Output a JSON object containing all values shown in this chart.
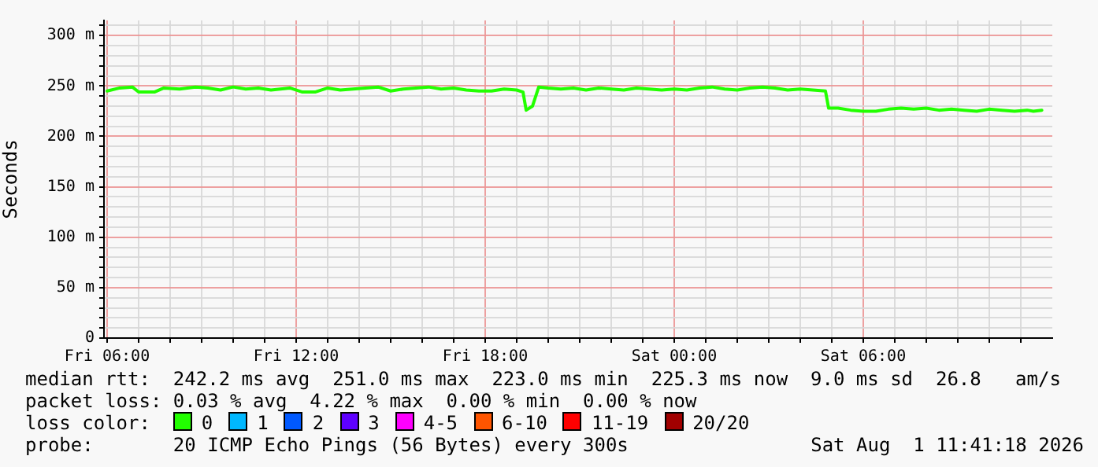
{
  "chart_data": {
    "type": "line",
    "ylabel": "Seconds",
    "grid": true,
    "marker": "none",
    "line_style": "solid",
    "legend": "bottom",
    "legend_title": "loss color:",
    "xlim": [
      "2026-07-31T05:54",
      "2026-08-01T12:00"
    ],
    "xticks": [
      {
        "value": "2026-07-31T06:00",
        "label": "Fri 06:00"
      },
      {
        "value": "2026-07-31T07:00",
        "label": null
      },
      {
        "value": "2026-07-31T08:00",
        "label": null
      },
      {
        "value": "2026-07-31T09:00",
        "label": null
      },
      {
        "value": "2026-07-31T10:00",
        "label": null
      },
      {
        "value": "2026-07-31T11:00",
        "label": null
      },
      {
        "value": "2026-07-31T12:00",
        "label": "Fri 12:00"
      },
      {
        "value": "2026-07-31T13:00",
        "label": null
      },
      {
        "value": "2026-07-31T14:00",
        "label": null
      },
      {
        "value": "2026-07-31T15:00",
        "label": null
      },
      {
        "value": "2026-07-31T16:00",
        "label": null
      },
      {
        "value": "2026-07-31T17:00",
        "label": null
      },
      {
        "value": "2026-07-31T18:00",
        "label": "Fri 18:00"
      },
      {
        "value": "2026-07-31T19:00",
        "label": null
      },
      {
        "value": "2026-07-31T20:00",
        "label": null
      },
      {
        "value": "2026-07-31T21:00",
        "label": null
      },
      {
        "value": "2026-07-31T22:00",
        "label": null
      },
      {
        "value": "2026-07-31T23:00",
        "label": null
      },
      {
        "value": "2026-08-01T00:00",
        "label": "Sat 00:00"
      },
      {
        "value": "2026-08-01T01:00",
        "label": null
      },
      {
        "value": "2026-08-01T02:00",
        "label": null
      },
      {
        "value": "2026-08-01T03:00",
        "label": null
      },
      {
        "value": "2026-08-01T04:00",
        "label": null
      },
      {
        "value": "2026-08-01T05:00",
        "label": null
      },
      {
        "value": "2026-08-01T06:00",
        "label": "Sat 06:00"
      },
      {
        "value": "2026-08-01T07:00",
        "label": null
      },
      {
        "value": "2026-08-01T08:00",
        "label": null
      },
      {
        "value": "2026-08-01T09:00",
        "label": null
      },
      {
        "value": "2026-08-01T10:00",
        "label": null
      },
      {
        "value": "2026-08-01T11:00",
        "label": null
      }
    ],
    "ylim": [
      0,
      315
    ],
    "yticks": [
      0,
      {
        "value": 10,
        "label": null
      },
      {
        "value": 20,
        "label": null
      },
      {
        "value": 30,
        "label": null
      },
      {
        "value": 40,
        "label": null
      },
      {
        "value": 50,
        "label": "50 m"
      },
      {
        "value": 60,
        "label": null
      },
      {
        "value": 70,
        "label": null
      },
      {
        "value": 80,
        "label": null
      },
      {
        "value": 90,
        "label": null
      },
      {
        "value": 100,
        "label": "100 m"
      },
      {
        "value": 110,
        "label": null
      },
      {
        "value": 120,
        "label": null
      },
      {
        "value": 130,
        "label": null
      },
      {
        "value": 140,
        "label": null
      },
      {
        "value": 150,
        "label": "150 m"
      },
      {
        "value": 160,
        "label": null
      },
      {
        "value": 170,
        "label": null
      },
      {
        "value": 180,
        "label": null
      },
      {
        "value": 190,
        "label": null
      },
      {
        "value": 200,
        "label": "200 m"
      },
      {
        "value": 210,
        "label": null
      },
      {
        "value": 220,
        "label": null
      },
      {
        "value": 230,
        "label": null
      },
      {
        "value": 240,
        "label": null
      },
      {
        "value": 250,
        "label": "250 m"
      },
      {
        "value": 260,
        "label": null
      },
      {
        "value": 270,
        "label": null
      },
      {
        "value": 280,
        "label": null
      },
      {
        "value": 290,
        "label": null
      },
      {
        "value": 300,
        "label": "300 m"
      },
      {
        "value": 310,
        "label": null
      }
    ],
    "series": [
      {
        "name": "0",
        "color": "#22ff00",
        "x": [
          "2026-07-31T06:00",
          "2026-07-31T06:24",
          "2026-07-31T06:48",
          "2026-07-31T07:00",
          "2026-07-31T07:30",
          "2026-07-31T07:48",
          "2026-07-31T08:18",
          "2026-07-31T08:48",
          "2026-07-31T09:12",
          "2026-07-31T09:36",
          "2026-07-31T10:00",
          "2026-07-31T10:24",
          "2026-07-31T10:48",
          "2026-07-31T11:12",
          "2026-07-31T11:48",
          "2026-07-31T12:12",
          "2026-07-31T12:36",
          "2026-07-31T13:00",
          "2026-07-31T13:24",
          "2026-07-31T13:48",
          "2026-07-31T14:12",
          "2026-07-31T14:36",
          "2026-07-31T15:00",
          "2026-07-31T15:24",
          "2026-07-31T15:48",
          "2026-07-31T16:12",
          "2026-07-31T16:36",
          "2026-07-31T17:00",
          "2026-07-31T17:24",
          "2026-07-31T17:48",
          "2026-07-31T18:12",
          "2026-07-31T18:36",
          "2026-07-31T19:00",
          "2026-07-31T19:12",
          "2026-07-31T19:18",
          "2026-07-31T19:30",
          "2026-07-31T19:42",
          "2026-07-31T20:00",
          "2026-07-31T20:24",
          "2026-07-31T20:48",
          "2026-07-31T21:12",
          "2026-07-31T21:36",
          "2026-07-31T22:00",
          "2026-07-31T22:24",
          "2026-07-31T22:48",
          "2026-07-31T23:12",
          "2026-07-31T23:36",
          "2026-08-01T00:00",
          "2026-08-01T00:24",
          "2026-08-01T00:48",
          "2026-08-01T01:12",
          "2026-08-01T01:36",
          "2026-08-01T02:00",
          "2026-08-01T02:24",
          "2026-08-01T02:48",
          "2026-08-01T03:12",
          "2026-08-01T03:36",
          "2026-08-01T04:00",
          "2026-08-01T04:24",
          "2026-08-01T04:48",
          "2026-08-01T04:54",
          "2026-08-01T05:12",
          "2026-08-01T05:36",
          "2026-08-01T06:00",
          "2026-08-01T06:24",
          "2026-08-01T06:48",
          "2026-08-01T07:12",
          "2026-08-01T07:36",
          "2026-08-01T08:00",
          "2026-08-01T08:24",
          "2026-08-01T08:48",
          "2026-08-01T09:12",
          "2026-08-01T09:36",
          "2026-08-01T10:00",
          "2026-08-01T10:24",
          "2026-08-01T10:48",
          "2026-08-01T11:12",
          "2026-08-01T11:24",
          "2026-08-01T11:40"
        ],
        "values": [
          245,
          248,
          249,
          244,
          244,
          248,
          247,
          249,
          248,
          246,
          249,
          247,
          248,
          246,
          248,
          244,
          244,
          248,
          246,
          247,
          248,
          249,
          245,
          247,
          248,
          249,
          247,
          248,
          246,
          245,
          245,
          247,
          246,
          244,
          226,
          230,
          249,
          248,
          247,
          248,
          246,
          248,
          247,
          246,
          248,
          247,
          246,
          247,
          246,
          248,
          249,
          247,
          246,
          248,
          249,
          248,
          246,
          247,
          246,
          245,
          228,
          228,
          226,
          225,
          225,
          227,
          228,
          227,
          228,
          226,
          227,
          226,
          225,
          227,
          226,
          225,
          226,
          225,
          226
        ]
      },
      {
        "name": "1",
        "color": "#00b8ff"
      },
      {
        "name": "2",
        "color": "#0059ff"
      },
      {
        "name": "3",
        "color": "#5e00ff"
      },
      {
        "name": "4-5",
        "color": "#ff00ff"
      },
      {
        "name": "6-10",
        "color": "#ff5500"
      },
      {
        "name": "11-19",
        "color": "#ff0000"
      },
      {
        "name": "20/20",
        "color": "#a10000"
      }
    ],
    "annotations": [
      "median rtt:  242.2 ms avg  251.0 ms max  223.0 ms min  225.3 ms now  9.0 ms sd  26.8   am/s",
      "packet loss: 0.03 % avg  4.22 % max  0.00 % min  0.00 % now",
      "probe:       20 ICMP Echo Pings (56 Bytes) every 300s",
      "Sat Aug  1 11:41:18 2026"
    ]
  }
}
